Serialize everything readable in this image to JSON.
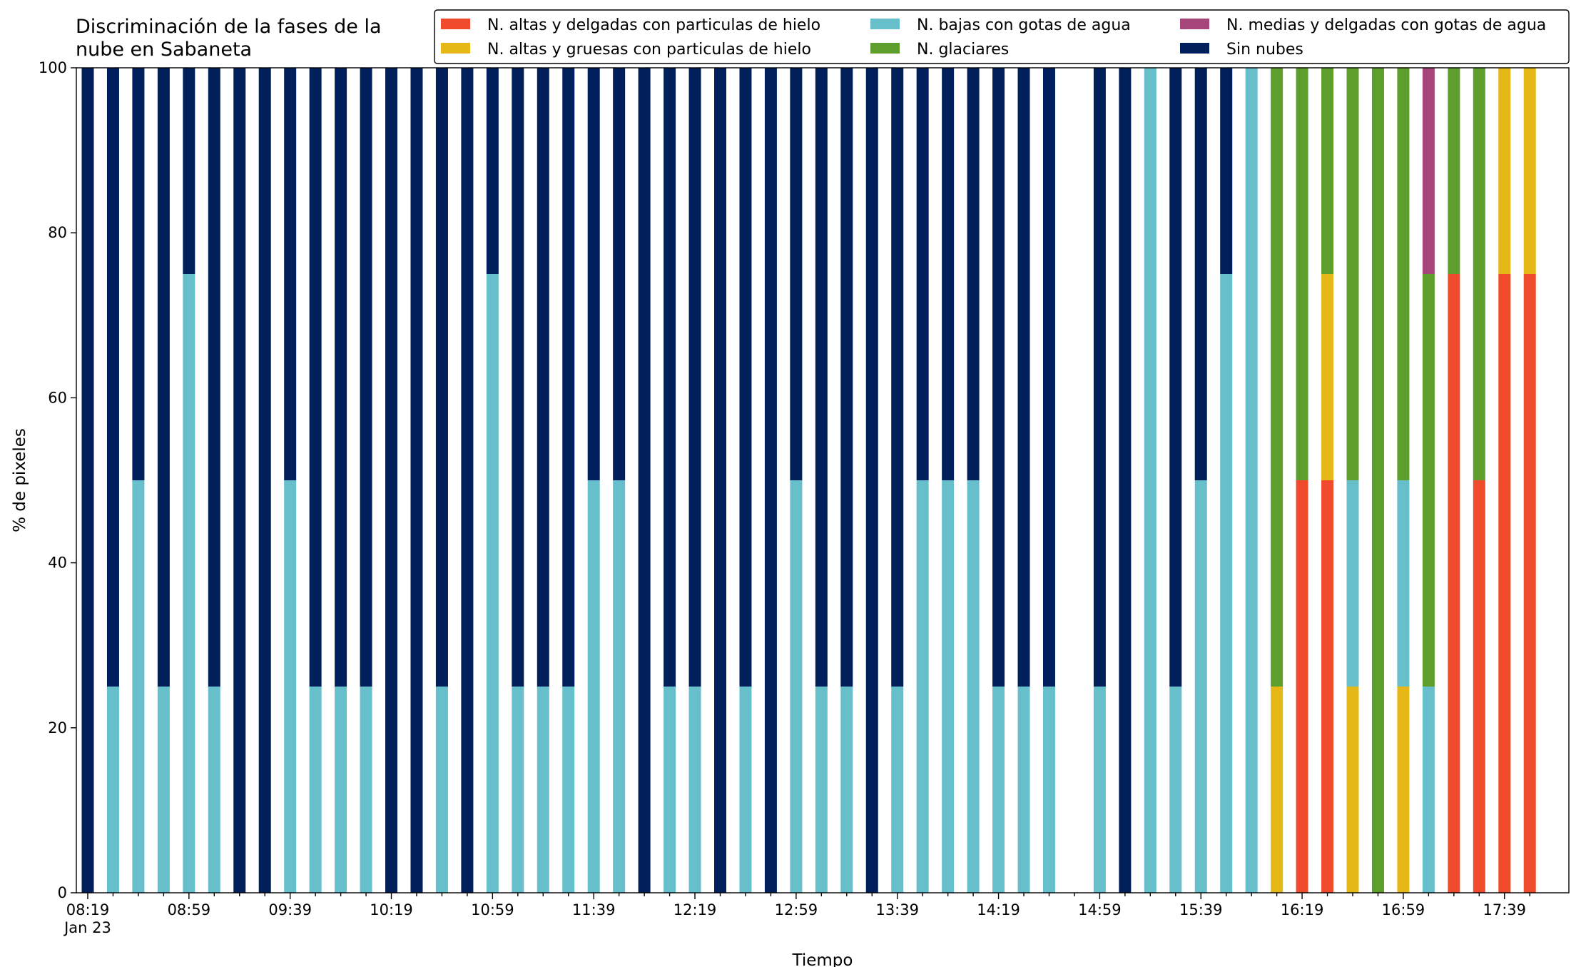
{
  "chart_data": {
    "type": "stacked_bar",
    "title": "Discriminación de la fases de la nube en Sabaneta",
    "x_label": "Tiempo",
    "y_label": "% de pixeles",
    "date_label": "Jan 23",
    "categories": [
      "08:19",
      null,
      null,
      null,
      "08:59",
      null,
      null,
      null,
      "09:39",
      null,
      null,
      null,
      "10:19",
      null,
      null,
      null,
      "10:59",
      null,
      null,
      null,
      "11:39",
      null,
      null,
      null,
      "12:19",
      null,
      null,
      null,
      "12:59",
      null,
      null,
      null,
      "13:39",
      null,
      null,
      null,
      "14:19",
      null,
      null,
      null,
      "14:59",
      null,
      null,
      null,
      "15:39",
      null,
      null,
      null,
      "16:19",
      null,
      null,
      null,
      "16:59",
      null,
      null,
      null,
      "17:39",
      null
    ],
    "ylim": [
      0,
      100
    ],
    "yticks": [
      0,
      20,
      40,
      60,
      80,
      100
    ],
    "legend": "top-right",
    "series": [
      {
        "name": "N. altas y delgadas con particulas de hielo",
        "color": "#f04b2c",
        "values": [
          0,
          0,
          0,
          0,
          0,
          0,
          0,
          0,
          0,
          0,
          0,
          0,
          0,
          0,
          0,
          0,
          0,
          0,
          0,
          0,
          0,
          0,
          0,
          0,
          0,
          0,
          0,
          0,
          0,
          0,
          0,
          0,
          0,
          0,
          0,
          0,
          0,
          0,
          0,
          null,
          0,
          0,
          0,
          0,
          0,
          0,
          0,
          0,
          50,
          50,
          0,
          0,
          0,
          0,
          75,
          50,
          75,
          75
        ]
      },
      {
        "name": "N. altas y gruesas con particulas de hielo",
        "color": "#e6b817",
        "values": [
          0,
          0,
          0,
          0,
          0,
          0,
          0,
          0,
          0,
          0,
          0,
          0,
          0,
          0,
          0,
          0,
          0,
          0,
          0,
          0,
          0,
          0,
          0,
          0,
          0,
          0,
          0,
          0,
          0,
          0,
          0,
          0,
          0,
          0,
          0,
          0,
          0,
          0,
          0,
          null,
          0,
          0,
          0,
          0,
          0,
          0,
          0,
          25,
          0,
          25,
          25,
          0,
          25,
          0,
          0,
          0,
          25,
          25
        ]
      },
      {
        "name": "N. bajas con gotas de agua",
        "color": "#67bfcb",
        "values": [
          0,
          25,
          50,
          25,
          75,
          25,
          0,
          0,
          50,
          25,
          25,
          25,
          0,
          0,
          25,
          0,
          75,
          25,
          25,
          25,
          50,
          50,
          0,
          25,
          25,
          0,
          25,
          0,
          50,
          25,
          25,
          0,
          25,
          50,
          50,
          50,
          25,
          25,
          25,
          null,
          25,
          0,
          100,
          25,
          50,
          75,
          100,
          0,
          0,
          0,
          25,
          0,
          25,
          25,
          0,
          0,
          0,
          0
        ]
      },
      {
        "name": "N. glaciares",
        "color": "#5e9e2c",
        "values": [
          0,
          0,
          0,
          0,
          0,
          0,
          0,
          0,
          0,
          0,
          0,
          0,
          0,
          0,
          0,
          0,
          0,
          0,
          0,
          0,
          0,
          0,
          0,
          0,
          0,
          0,
          0,
          0,
          0,
          0,
          0,
          0,
          0,
          0,
          0,
          0,
          0,
          0,
          0,
          null,
          0,
          0,
          0,
          0,
          0,
          0,
          0,
          75,
          50,
          25,
          50,
          100,
          50,
          50,
          25,
          50,
          0,
          0
        ]
      },
      {
        "name": "N. medias y delgadas con gotas de agua",
        "color": "#a5457a",
        "values": [
          0,
          0,
          0,
          0,
          0,
          0,
          0,
          0,
          0,
          0,
          0,
          0,
          0,
          0,
          0,
          0,
          0,
          0,
          0,
          0,
          0,
          0,
          0,
          0,
          0,
          0,
          0,
          0,
          0,
          0,
          0,
          0,
          0,
          0,
          0,
          0,
          0,
          0,
          0,
          null,
          0,
          0,
          0,
          0,
          0,
          0,
          0,
          0,
          0,
          0,
          0,
          0,
          0,
          25,
          0,
          0,
          0,
          0
        ]
      },
      {
        "name": "Sin nubes",
        "color": "#001f5b",
        "values": [
          100,
          75,
          50,
          75,
          25,
          75,
          100,
          100,
          50,
          75,
          75,
          75,
          100,
          100,
          75,
          100,
          25,
          75,
          75,
          75,
          50,
          50,
          100,
          75,
          75,
          100,
          75,
          100,
          50,
          75,
          75,
          100,
          75,
          50,
          50,
          50,
          75,
          75,
          75,
          null,
          75,
          100,
          0,
          75,
          50,
          25,
          0,
          0,
          0,
          0,
          0,
          0,
          0,
          0,
          0,
          0,
          0,
          0
        ]
      }
    ]
  }
}
